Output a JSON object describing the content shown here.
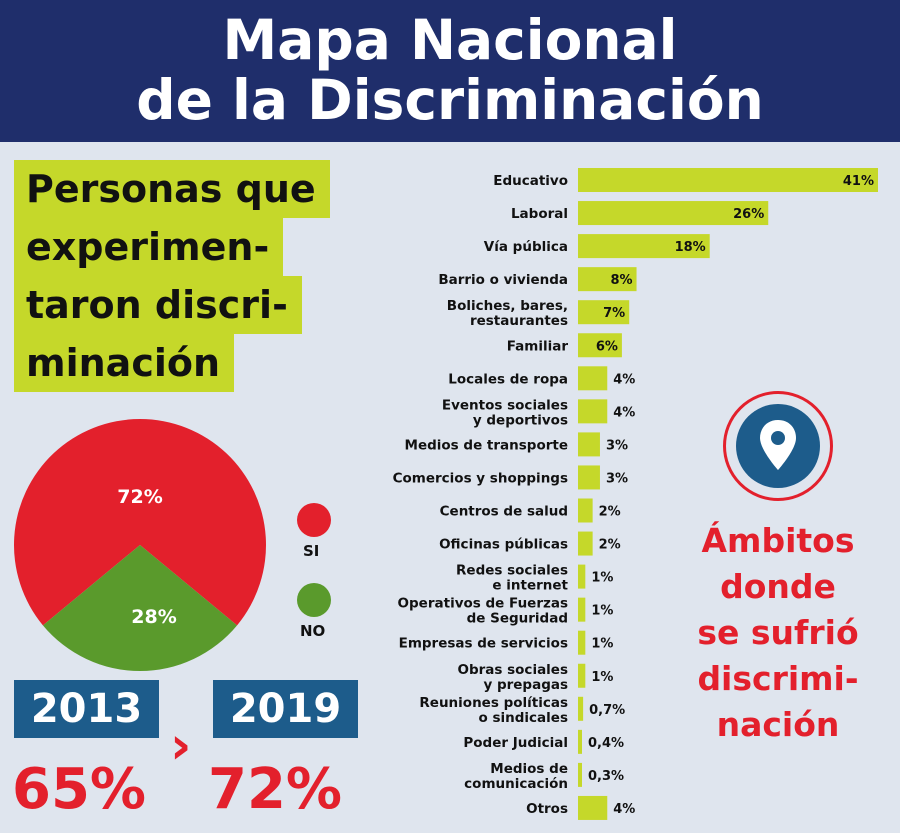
{
  "header": {
    "title_line1": "Mapa Nacional",
    "title_line2": "de la Discriminación"
  },
  "headline": {
    "lines": [
      "Personas que",
      "experimen-",
      "taron discri-",
      "minación"
    ]
  },
  "pie": {
    "legend": [
      {
        "label": "SI",
        "color": "#e3202c"
      },
      {
        "label": "NO",
        "color": "#5a9a2c"
      }
    ]
  },
  "comparison": {
    "year_a": "2013",
    "year_b": "2019",
    "value_a": "65%",
    "value_b": "72%",
    "arrow": "›"
  },
  "ambitos": {
    "lines": [
      "Ámbitos",
      "donde",
      "se sufrió",
      "discrimi-",
      "nación"
    ],
    "icon": "location-pin-icon"
  },
  "colors": {
    "header_bg": "#1f2e6b",
    "accent_green": "#c5d82a",
    "red": "#e3202c",
    "green": "#5a9a2c",
    "blue": "#1d5c8b",
    "background": "#dfe5ee"
  },
  "chart_data": [
    {
      "type": "pie",
      "categories": [
        "SI",
        "NO"
      ],
      "values": [
        72,
        28
      ],
      "labels": [
        "72%",
        "28%"
      ],
      "legend": "right"
    },
    {
      "type": "bar",
      "orientation": "horizontal",
      "categories": [
        "Educativo",
        "Laboral",
        "Vía pública",
        "Barrio o vivienda",
        "Boliches, bares,\nrestaurantes",
        "Familiar",
        "Locales de ropa",
        "Eventos sociales\ny deportivos",
        "Medios de transporte",
        "Comercios y shoppings",
        "Centros de salud",
        "Oficinas públicas",
        "Redes sociales\ne internet",
        "Operativos de Fuerzas\nde Seguridad",
        "Empresas de servicios",
        "Obras sociales\ny prepagas",
        "Reuniones políticas\no sindicales",
        "Poder Judicial",
        "Medios de\ncomunicación",
        "Otros"
      ],
      "values": [
        41,
        26,
        18,
        8,
        7,
        6,
        4,
        4,
        3,
        3,
        2,
        2,
        1,
        1,
        1,
        1,
        0.7,
        0.4,
        0.3,
        4
      ],
      "labels": [
        "41%",
        "26%",
        "18%",
        "8%",
        "7%",
        "6%",
        "4%",
        "4%",
        "3%",
        "3%",
        "2%",
        "2%",
        "1%",
        "1%",
        "1%",
        "1%",
        "0,7%",
        "0,4%",
        "0,3%",
        "4%"
      ],
      "xlim": [
        0,
        41
      ]
    }
  ]
}
